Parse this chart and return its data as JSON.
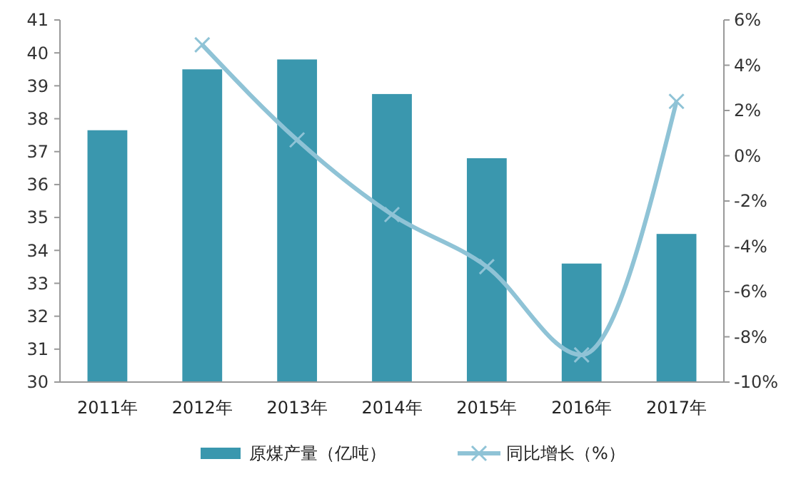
{
  "chart_data": {
    "type": "bar",
    "categories": [
      "2011年",
      "2012年",
      "2013年",
      "2014年",
      "2015年",
      "2016年",
      "2017年"
    ],
    "series": [
      {
        "name": "原煤产量（亿吨）",
        "color": "#3a97ae",
        "values": [
          37.65,
          39.5,
          39.8,
          38.75,
          36.8,
          33.6,
          34.5
        ]
      },
      {
        "name": "同比增长（%）",
        "type": "line",
        "axis": "y2",
        "color": "#8fc3d6",
        "marker": "cross",
        "values": [
          null,
          4.9,
          0.7,
          -2.6,
          -4.9,
          -8.8,
          2.4
        ]
      }
    ],
    "ylim": [
      30,
      41
    ],
    "yticks": [
      30,
      31,
      32,
      33,
      34,
      35,
      36,
      37,
      38,
      39,
      40,
      41
    ],
    "y2lim": [
      -10,
      6
    ],
    "y2ticks": [
      {
        "value": -10,
        "label": "-10%"
      },
      {
        "value": -8,
        "label": "-8%"
      },
      {
        "value": -6,
        "label": "-6%"
      },
      {
        "value": -4,
        "label": "-4%"
      },
      {
        "value": -2,
        "label": "-2%"
      },
      {
        "value": 0,
        "label": "0%"
      },
      {
        "value": 2,
        "label": "2%"
      },
      {
        "value": 4,
        "label": "4%"
      },
      {
        "value": 6,
        "label": "6%"
      }
    ],
    "legend": "bottom",
    "grid": false
  }
}
